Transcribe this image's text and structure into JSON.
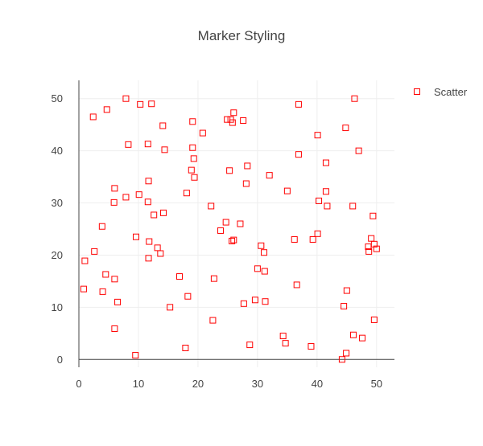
{
  "chart_data": {
    "type": "scatter",
    "title": "Marker Styling",
    "xlabel": "",
    "ylabel": "",
    "xlim": [
      0,
      53
    ],
    "ylim": [
      -1.5,
      53.5
    ],
    "x_ticks": [
      0,
      10,
      20,
      30,
      40,
      50
    ],
    "y_ticks": [
      0,
      10,
      20,
      30,
      40,
      50
    ],
    "grid": true,
    "legend_position": "top-right",
    "series": [
      {
        "name": "Scatter",
        "color": "#ff0000",
        "marker": "square-open",
        "points": [
          [
            2.4,
            46.5
          ],
          [
            4.7,
            47.9
          ],
          [
            7.9,
            50.0
          ],
          [
            10.3,
            48.9
          ],
          [
            12.2,
            49.0
          ],
          [
            14.1,
            44.8
          ],
          [
            19.1,
            45.6
          ],
          [
            20.8,
            43.4
          ],
          [
            24.9,
            46.0
          ],
          [
            25.5,
            46.0
          ],
          [
            25.8,
            45.4
          ],
          [
            26.0,
            47.3
          ],
          [
            27.6,
            45.8
          ],
          [
            36.9,
            48.9
          ],
          [
            46.3,
            50.0
          ],
          [
            40.1,
            43.0
          ],
          [
            44.8,
            44.4
          ],
          [
            47.0,
            40.0
          ],
          [
            8.3,
            41.2
          ],
          [
            11.6,
            41.3
          ],
          [
            14.4,
            40.2
          ],
          [
            19.1,
            40.6
          ],
          [
            19.3,
            38.5
          ],
          [
            36.9,
            39.3
          ],
          [
            41.5,
            37.7
          ],
          [
            18.9,
            36.3
          ],
          [
            25.3,
            36.2
          ],
          [
            28.3,
            37.1
          ],
          [
            32.0,
            35.3
          ],
          [
            19.4,
            34.9
          ],
          [
            11.7,
            34.2
          ],
          [
            6.0,
            32.8
          ],
          [
            10.1,
            31.6
          ],
          [
            7.9,
            31.1
          ],
          [
            5.9,
            30.1
          ],
          [
            11.6,
            30.2
          ],
          [
            18.1,
            31.9
          ],
          [
            28.1,
            33.7
          ],
          [
            35.0,
            32.3
          ],
          [
            40.3,
            30.4
          ],
          [
            41.5,
            32.2
          ],
          [
            41.7,
            29.4
          ],
          [
            46.0,
            29.4
          ],
          [
            22.2,
            29.4
          ],
          [
            12.6,
            27.7
          ],
          [
            14.2,
            28.1
          ],
          [
            49.4,
            27.5
          ],
          [
            3.9,
            25.5
          ],
          [
            24.7,
            26.3
          ],
          [
            27.1,
            26.0
          ],
          [
            23.8,
            24.7
          ],
          [
            9.6,
            23.5
          ],
          [
            11.8,
            22.6
          ],
          [
            25.7,
            22.7
          ],
          [
            26.0,
            22.9
          ],
          [
            36.2,
            23.0
          ],
          [
            39.3,
            23.0
          ],
          [
            40.1,
            24.1
          ],
          [
            49.1,
            23.2
          ],
          [
            49.6,
            22.1
          ],
          [
            50.0,
            21.2
          ],
          [
            48.6,
            21.6
          ],
          [
            48.7,
            20.7
          ],
          [
            13.2,
            21.4
          ],
          [
            13.7,
            20.3
          ],
          [
            30.6,
            21.8
          ],
          [
            31.1,
            20.5
          ],
          [
            2.6,
            20.7
          ],
          [
            1.0,
            18.9
          ],
          [
            11.7,
            19.4
          ],
          [
            30.0,
            17.4
          ],
          [
            31.2,
            16.9
          ],
          [
            4.5,
            16.3
          ],
          [
            6.0,
            15.4
          ],
          [
            16.9,
            15.9
          ],
          [
            22.7,
            15.5
          ],
          [
            0.8,
            13.5
          ],
          [
            4.0,
            13.0
          ],
          [
            36.6,
            14.3
          ],
          [
            45.0,
            13.2
          ],
          [
            6.5,
            11.0
          ],
          [
            18.3,
            12.1
          ],
          [
            29.6,
            11.4
          ],
          [
            27.7,
            10.7
          ],
          [
            31.3,
            11.1
          ],
          [
            15.3,
            10.0
          ],
          [
            44.5,
            10.2
          ],
          [
            22.5,
            7.5
          ],
          [
            49.6,
            7.6
          ],
          [
            6.0,
            5.9
          ],
          [
            34.3,
            4.5
          ],
          [
            46.1,
            4.7
          ],
          [
            47.6,
            4.1
          ],
          [
            17.9,
            2.2
          ],
          [
            28.7,
            2.8
          ],
          [
            34.7,
            3.1
          ],
          [
            39.0,
            2.5
          ],
          [
            9.5,
            0.8
          ],
          [
            44.9,
            1.2
          ],
          [
            44.2,
            0.0
          ]
        ]
      }
    ]
  }
}
